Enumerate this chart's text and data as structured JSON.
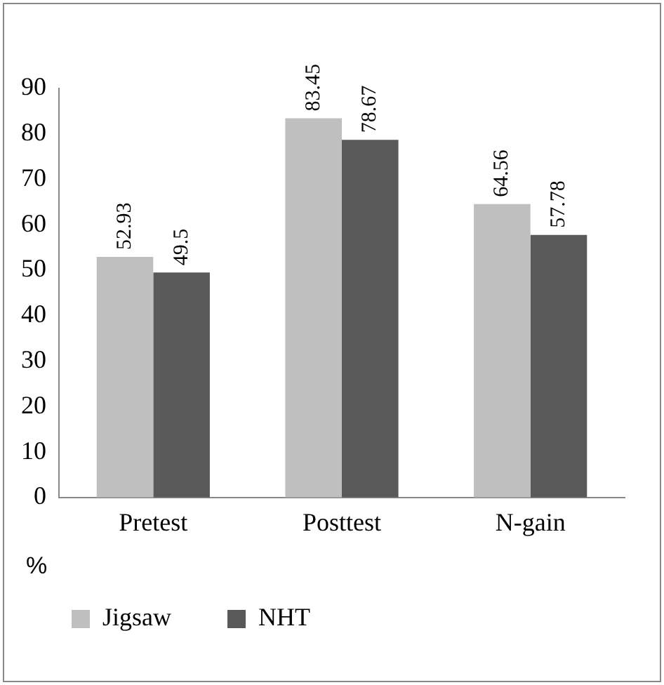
{
  "chart_data": {
    "type": "bar",
    "ylabel": "%",
    "categories": [
      "Pretest",
      "Posttest",
      "N-gain"
    ],
    "series": [
      {
        "name": "Jigsaw",
        "color": "#bfbfbf",
        "values": [
          52.93,
          83.45,
          64.56
        ]
      },
      {
        "name": "NHT",
        "color": "#595959",
        "values": [
          49.5,
          78.67,
          57.78
        ]
      }
    ],
    "ylim": [
      0,
      90
    ],
    "yticks": [
      0,
      10,
      20,
      30,
      40,
      50,
      60,
      70,
      80,
      90
    ],
    "grid": false,
    "legend": "bottom left",
    "data_labels": true
  }
}
